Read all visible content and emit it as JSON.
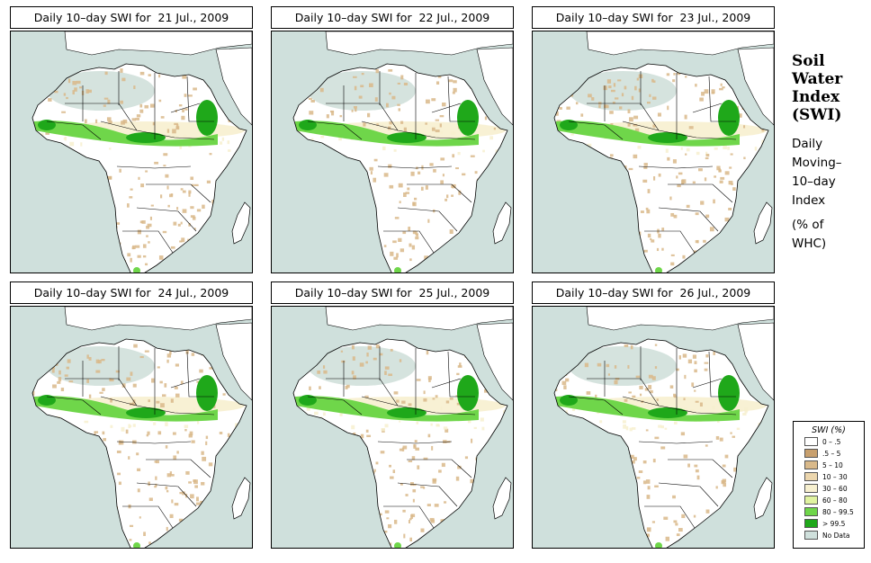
{
  "panels": [
    {
      "title": "Daily 10–day SWI for  21 Jul., 2009"
    },
    {
      "title": "Daily 10–day SWI for  22 Jul., 2009"
    },
    {
      "title": "Daily 10–day SWI for  23 Jul., 2009"
    },
    {
      "title": "Daily 10–day SWI for  24 Jul., 2009"
    },
    {
      "title": "Daily 10–day SWI for  25 Jul., 2009"
    },
    {
      "title": "Daily 10–day SWI for  26 Jul., 2009"
    }
  ],
  "side": {
    "title_lines": [
      "Soil",
      "Water",
      "Index",
      "(SWI)"
    ],
    "subtitle_lines": [
      "Daily",
      "Moving–",
      "10–day",
      "Index"
    ],
    "unit_lines": [
      "(% of",
      " WHC)"
    ]
  },
  "legend": {
    "title": "SWI (%)",
    "entries": [
      {
        "label": "0 – .5",
        "color": "#ffffff"
      },
      {
        "label": ".5 – 5",
        "color": "#c8a06e"
      },
      {
        "label": "5 – 10",
        "color": "#d9b98a"
      },
      {
        "label": "10 – 30",
        "color": "#ecd6ad"
      },
      {
        "label": "30 – 60",
        "color": "#f7f0cf"
      },
      {
        "label": "60 – 80",
        "color": "#e0f3a0"
      },
      {
        "label": "80 – 99.5",
        "color": "#6fd64a"
      },
      {
        "label": "> 99.5",
        "color": "#1fa81a"
      },
      {
        "label": "No Data",
        "color": "#cfe0dc"
      }
    ]
  },
  "colors": {
    "ocean": "#cfe0dc",
    "land": "#ffffff",
    "desert_no_data": "#d5e3de",
    "dry": "#d9b98a",
    "moist": "#f7f0cf",
    "wet": "#6fd64a",
    "saturated": "#1fa81a",
    "border": "#000000"
  }
}
